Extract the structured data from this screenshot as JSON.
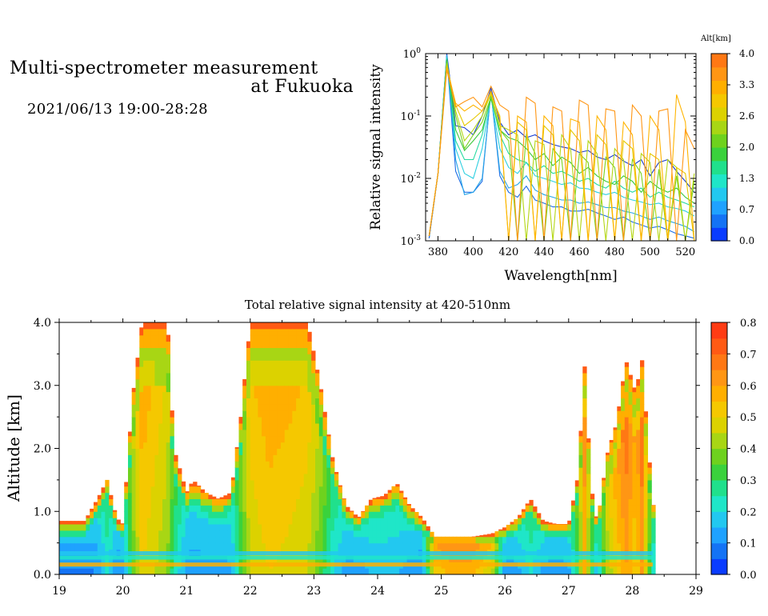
{
  "header": {
    "title_line1": "Multi-spectrometer measurement",
    "title_line2": "at Fukuoka",
    "datetime": "2021/06/13 19:00-28:28"
  },
  "chart_data": [
    {
      "type": "line",
      "title": "",
      "xlabel": "Wavelength[nm]",
      "ylabel": "Relative signal intensity",
      "xlim": [
        373,
        526
      ],
      "ylim": [
        0.001,
        1
      ],
      "yscale": "log",
      "x_ticks": [
        380,
        400,
        420,
        440,
        460,
        480,
        500,
        520
      ],
      "y_ticks": [
        {
          "value": 0.001,
          "base": "10",
          "exp": "-3"
        },
        {
          "value": 0.01,
          "base": "10",
          "exp": "-2"
        },
        {
          "value": 0.1,
          "base": "10",
          "exp": "-1"
        },
        {
          "value": 1,
          "base": "10",
          "exp": "0"
        }
      ],
      "x": [
        375,
        380,
        385,
        390,
        395,
        400,
        405,
        410,
        415,
        420,
        425,
        430,
        435,
        440,
        445,
        450,
        455,
        460,
        465,
        470,
        475,
        480,
        485,
        490,
        495,
        500,
        505,
        510,
        515,
        520,
        525
      ],
      "colorbar": {
        "label": "Alt[km]",
        "ticks": [
          "0.0",
          "0.7",
          "1.3",
          "2.0",
          "2.6",
          "3.3",
          "4.0"
        ],
        "colors": [
          "#0a3cff",
          "#1473f5",
          "#1fa2ff",
          "#22c8f0",
          "#1fe6c8",
          "#20e08c",
          "#3ad23c",
          "#6ed21e",
          "#a8d614",
          "#dcd200",
          "#f5c800",
          "#ffaf00",
          "#ff9614",
          "#ff7814"
        ]
      },
      "series": [
        {
          "color": "#1a3ccf",
          "values": [
            0.0011,
            0.012,
            1.0,
            0.07,
            0.065,
            0.05,
            0.1,
            0.28,
            0.08,
            0.05,
            0.06,
            0.045,
            0.05,
            0.04,
            0.035,
            0.032,
            0.03,
            0.026,
            0.028,
            0.022,
            0.02,
            0.024,
            0.019,
            0.016,
            0.02,
            0.011,
            0.018,
            0.02,
            0.013,
            0.009,
            0.006
          ]
        },
        {
          "color": "#1e6ee6",
          "values": [
            0.0011,
            0.012,
            0.9,
            0.013,
            0.006,
            0.006,
            0.009,
            0.25,
            0.011,
            0.006,
            0.005,
            0.0075,
            0.0045,
            0.004,
            0.0035,
            0.0035,
            0.003,
            0.003,
            0.0032,
            0.0028,
            0.0025,
            0.0022,
            0.0024,
            0.002,
            0.0018,
            0.0016,
            0.0017,
            0.0015,
            0.0013,
            0.0012,
            0.0011
          ]
        },
        {
          "color": "#28a6e8",
          "values": [
            0.0012,
            0.012,
            0.95,
            0.02,
            0.0055,
            0.006,
            0.01,
            0.24,
            0.013,
            0.007,
            0.008,
            0.011,
            0.0065,
            0.0055,
            0.005,
            0.0045,
            0.0045,
            0.004,
            0.0042,
            0.0038,
            0.0034,
            0.0034,
            0.003,
            0.0028,
            0.0025,
            0.0022,
            0.0024,
            0.0021,
            0.0019,
            0.0017,
            0.0014
          ]
        },
        {
          "color": "#2ccfe0",
          "values": [
            0.0012,
            0.012,
            0.9,
            0.03,
            0.012,
            0.01,
            0.03,
            0.2,
            0.03,
            0.015,
            0.012,
            0.018,
            0.011,
            0.01,
            0.009,
            0.008,
            0.0085,
            0.007,
            0.0068,
            0.006,
            0.0055,
            0.006,
            0.005,
            0.0045,
            0.0042,
            0.0038,
            0.004,
            0.0035,
            0.0033,
            0.003,
            0.0025
          ]
        },
        {
          "color": "#25d9a0",
          "values": [
            0.0012,
            0.012,
            0.85,
            0.04,
            0.02,
            0.02,
            0.05,
            0.21,
            0.05,
            0.025,
            0.02,
            0.018,
            0.013,
            0.016,
            0.012,
            0.013,
            0.011,
            0.009,
            0.01,
            0.008,
            0.007,
            0.009,
            0.007,
            0.006,
            0.007,
            0.005,
            0.006,
            0.005,
            0.0045,
            0.004,
            0.0035
          ]
        },
        {
          "color": "#3cc83c",
          "values": [
            0.0012,
            0.012,
            0.8,
            0.06,
            0.028,
            0.04,
            0.06,
            0.19,
            0.06,
            0.045,
            0.04,
            0.03,
            0.02,
            0.025,
            0.016,
            0.022,
            0.018,
            0.012,
            0.015,
            0.011,
            0.009,
            0.008,
            0.011,
            0.009,
            0.006,
            0.009,
            0.007,
            0.006,
            0.007,
            0.005,
            0.004
          ]
        },
        {
          "color": "#7ad21e",
          "values": [
            0.0012,
            0.012,
            0.75,
            0.1,
            0.03,
            0.05,
            0.08,
            0.2,
            0.06,
            0.04,
            0.001,
            0.05,
            0.025,
            0.001,
            0.03,
            0.02,
            0.001,
            0.025,
            0.018,
            0.001,
            0.022,
            0.015,
            0.001,
            0.02,
            0.012,
            0.001,
            0.014,
            0.001,
            0.011,
            0.001,
            0.009
          ]
        },
        {
          "color": "#b4d614",
          "values": [
            0.0012,
            0.012,
            0.7,
            0.12,
            0.04,
            0.06,
            0.1,
            0.23,
            0.07,
            0.06,
            0.05,
            0.001,
            0.04,
            0.035,
            0.001,
            0.05,
            0.03,
            0.001,
            0.04,
            0.025,
            0.001,
            0.03,
            0.02,
            0.001,
            0.025,
            0.018,
            0.001,
            0.02,
            0.015,
            0.001,
            0.012
          ]
        },
        {
          "color": "#e6c800",
          "values": [
            0.0012,
            0.012,
            0.65,
            0.15,
            0.07,
            0.09,
            0.12,
            0.22,
            0.1,
            0.001,
            0.08,
            0.06,
            0.001,
            0.07,
            0.05,
            0.001,
            0.06,
            0.04,
            0.001,
            0.05,
            0.035,
            0.001,
            0.04,
            0.03,
            0.001,
            0.025,
            0.02,
            0.001,
            0.015,
            0.012,
            0.001
          ]
        },
        {
          "color": "#ffb400",
          "values": [
            0.0012,
            0.012,
            0.6,
            0.16,
            0.12,
            0.15,
            0.12,
            0.25,
            0.09,
            0.001,
            0.1,
            0.08,
            0.001,
            0.1,
            0.07,
            0.001,
            0.09,
            0.08,
            0.001,
            0.1,
            0.06,
            0.001,
            0.08,
            0.05,
            0.001,
            0.1,
            0.06,
            0.001,
            0.22,
            0.08,
            0.001
          ]
        },
        {
          "color": "#ff9614",
          "values": [
            0.0012,
            0.012,
            0.55,
            0.14,
            0.17,
            0.2,
            0.14,
            0.3,
            0.15,
            0.12,
            0.001,
            0.2,
            0.16,
            0.001,
            0.14,
            0.12,
            0.001,
            0.18,
            0.15,
            0.001,
            0.13,
            0.12,
            0.001,
            0.15,
            0.1,
            0.001,
            0.12,
            0.13,
            0.001,
            0.06,
            0.03
          ]
        }
      ]
    },
    {
      "type": "heatmap",
      "title": "Total relative signal intensity at 420-510nm",
      "xlabel": "",
      "ylabel": "Altitude [km]",
      "xlim": [
        19,
        29
      ],
      "ylim": [
        0,
        4
      ],
      "x_ticks": [
        19,
        20,
        21,
        22,
        23,
        24,
        25,
        26,
        27,
        28,
        29
      ],
      "y_ticks": [
        "0.0",
        "1.0",
        "2.0",
        "3.0",
        "4.0"
      ],
      "colorbar": {
        "label": "",
        "ticks": [
          "0.0",
          "0.1",
          "0.2",
          "0.3",
          "0.4",
          "0.5",
          "0.6",
          "0.7",
          "0.8"
        ],
        "colors": [
          "#0a3cff",
          "#1473f5",
          "#1fa2ff",
          "#22c8f0",
          "#1fe6c8",
          "#20e08c",
          "#3ad23c",
          "#6ed21e",
          "#a8d614",
          "#dcd200",
          "#f5c800",
          "#ffaf00",
          "#ff9614",
          "#ff7814",
          "#ff5a14",
          "#ff3c14"
        ]
      },
      "profile": {
        "time": [
          19.0,
          19.4,
          19.6,
          19.75,
          19.9,
          20.0,
          20.15,
          20.3,
          20.5,
          20.7,
          20.8,
          21.0,
          21.1,
          21.3,
          21.5,
          21.7,
          21.85,
          22.0,
          22.3,
          22.6,
          22.9,
          23.1,
          23.3,
          23.5,
          23.7,
          23.9,
          24.1,
          24.3,
          24.5,
          24.7,
          24.9,
          25.1,
          25.5,
          25.8,
          26.0,
          26.2,
          26.4,
          26.6,
          26.8,
          27.0,
          27.15,
          27.25,
          27.35,
          27.45,
          27.6,
          27.75,
          27.9,
          28.05,
          28.15,
          28.32
        ],
        "top_km": [
          0.85,
          0.85,
          1.2,
          1.5,
          0.9,
          0.8,
          2.8,
          4.0,
          4.0,
          4.0,
          2.0,
          1.3,
          1.5,
          1.3,
          1.2,
          1.3,
          2.5,
          4.0,
          4.0,
          4.0,
          4.0,
          3.0,
          1.8,
          1.1,
          0.9,
          1.2,
          1.25,
          1.45,
          1.1,
          0.9,
          0.6,
          0.6,
          0.6,
          0.65,
          0.75,
          0.9,
          1.2,
          0.85,
          0.8,
          0.8,
          1.6,
          3.3,
          1.4,
          0.8,
          1.9,
          2.4,
          3.4,
          2.9,
          3.4,
          1.1
        ],
        "core_intensity": [
          0.08,
          0.08,
          0.1,
          0.2,
          0.1,
          0.1,
          0.35,
          0.5,
          0.45,
          0.4,
          0.25,
          0.12,
          0.12,
          0.12,
          0.12,
          0.13,
          0.3,
          0.45,
          0.5,
          0.48,
          0.45,
          0.35,
          0.2,
          0.12,
          0.12,
          0.15,
          0.15,
          0.15,
          0.12,
          0.1,
          0.5,
          0.55,
          0.55,
          0.45,
          0.1,
          0.12,
          0.2,
          0.12,
          0.1,
          0.12,
          0.3,
          0.55,
          0.3,
          0.15,
          0.4,
          0.5,
          0.6,
          0.5,
          0.6,
          0.2
        ],
        "end_time": 28.32
      },
      "bands": [
        {
          "alt_km": 0.26,
          "intensity": 0.24
        },
        {
          "alt_km": 0.33,
          "intensity": 0.16
        },
        {
          "alt_km": 0.15,
          "intensity": 0.55
        }
      ]
    }
  ]
}
